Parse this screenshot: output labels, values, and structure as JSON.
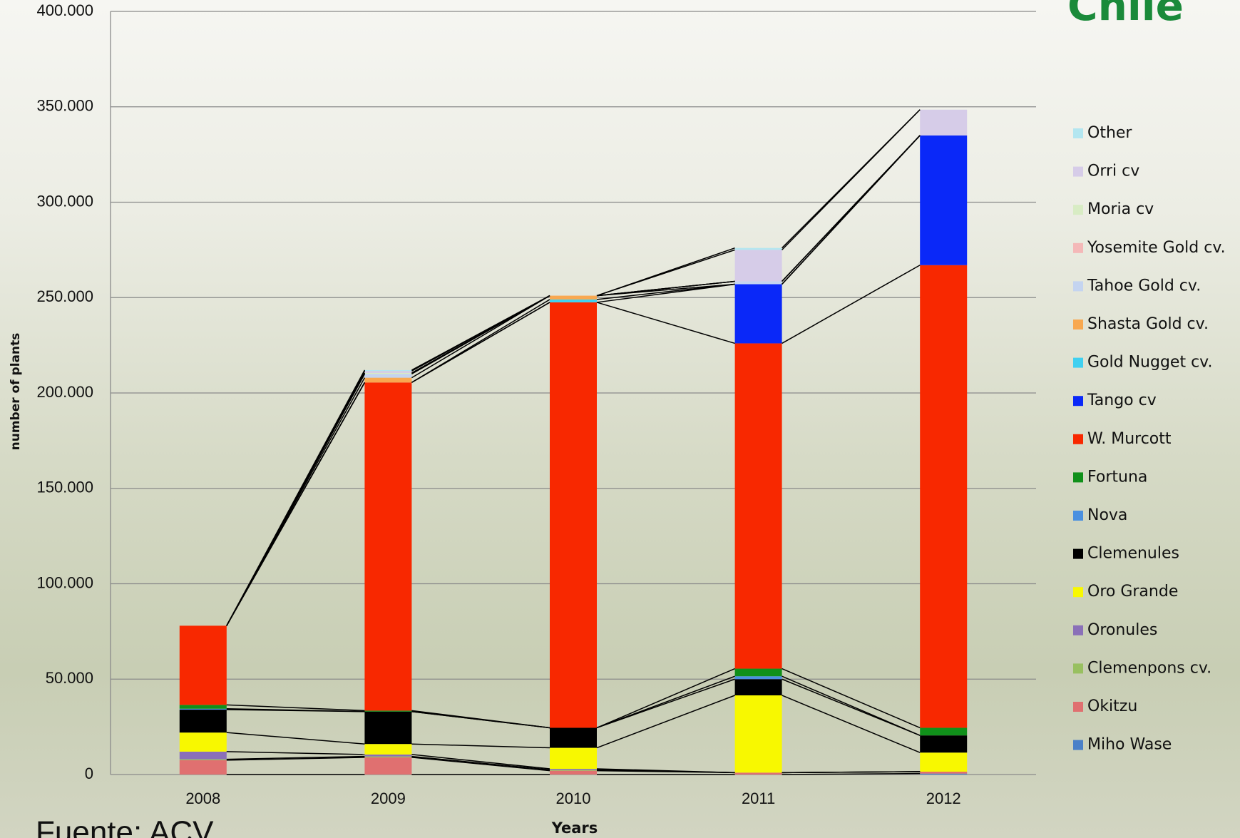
{
  "chart_data": {
    "type": "stacked_bar",
    "x_label": "Years",
    "y_label": "number of plants",
    "source": "Fuente: ACV",
    "logo": "Chile",
    "categories": [
      "2008",
      "2009",
      "2010",
      "2011",
      "2012"
    ],
    "ylim": [
      0,
      400000
    ],
    "yticks": [
      0,
      {
        "value": 50000,
        "label": "50.000"
      },
      {
        "value": 100000,
        "label": "100.000"
      },
      {
        "value": 150000,
        "label": "150.000"
      },
      {
        "value": 200000,
        "label": "200.000"
      },
      {
        "value": 250000,
        "label": "250.000"
      },
      {
        "value": 300000,
        "label": "300.000"
      },
      {
        "value": 350000,
        "label": "350.000"
      },
      {
        "value": 400000,
        "label": "400.000"
      }
    ],
    "grid": true,
    "legend": "right",
    "series": [
      {
        "name": "Miho Wase",
        "color": "#4a80c8",
        "values": [
          0,
          0,
          0,
          0,
          500
        ]
      },
      {
        "name": "Okitzu",
        "color": "#e07070",
        "values": [
          7500,
          9000,
          2000,
          1000,
          1000
        ]
      },
      {
        "name": "Clemenpons cv.",
        "color": "#98c060",
        "values": [
          500,
          500,
          500,
          0,
          0
        ]
      },
      {
        "name": "Oronules",
        "color": "#8a70b8",
        "values": [
          4000,
          1000,
          500,
          0,
          0
        ]
      },
      {
        "name": "Oro Grande",
        "color": "#f8f800",
        "values": [
          10000,
          5500,
          11000,
          40500,
          10000
        ]
      },
      {
        "name": "Clemenules",
        "color": "#000000",
        "values": [
          12000,
          17000,
          10500,
          8500,
          9000
        ]
      },
      {
        "name": "Nova",
        "color": "#4a90e0",
        "values": [
          500,
          0,
          0,
          1500,
          0
        ]
      },
      {
        "name": "Fortuna",
        "color": "#10901a",
        "values": [
          2000,
          500,
          0,
          4000,
          4000
        ]
      },
      {
        "name": "W. Murcott",
        "color": "#f82800",
        "values": [
          41500,
          172000,
          223000,
          170500,
          242500
        ]
      },
      {
        "name": "Tango cv",
        "color": "#0a28f8",
        "values": [
          0,
          0,
          0,
          31000,
          68000
        ]
      },
      {
        "name": "Gold Nugget cv.",
        "color": "#40d0f0",
        "values": [
          0,
          0,
          1500,
          0,
          0
        ]
      },
      {
        "name": "Shasta Gold cv.",
        "color": "#f8a850",
        "values": [
          0,
          2500,
          2000,
          0,
          0
        ]
      },
      {
        "name": "Tahoe Gold cv.",
        "color": "#c4d4f0",
        "values": [
          0,
          2000,
          0,
          1500,
          0
        ]
      },
      {
        "name": "Yosemite Gold cv.",
        "color": "#f4b8b8",
        "values": [
          0,
          0,
          0,
          0,
          0
        ]
      },
      {
        "name": "Moria cv",
        "color": "#d8ecc4",
        "values": [
          0,
          500,
          0,
          0,
          0
        ]
      },
      {
        "name": "Orri cv",
        "color": "#d6cce8",
        "values": [
          0,
          1000,
          0,
          16500,
          13500
        ]
      },
      {
        "name": "Other",
        "color": "#b3e6f0",
        "values": [
          0,
          500,
          0,
          1000,
          0
        ]
      }
    ]
  }
}
